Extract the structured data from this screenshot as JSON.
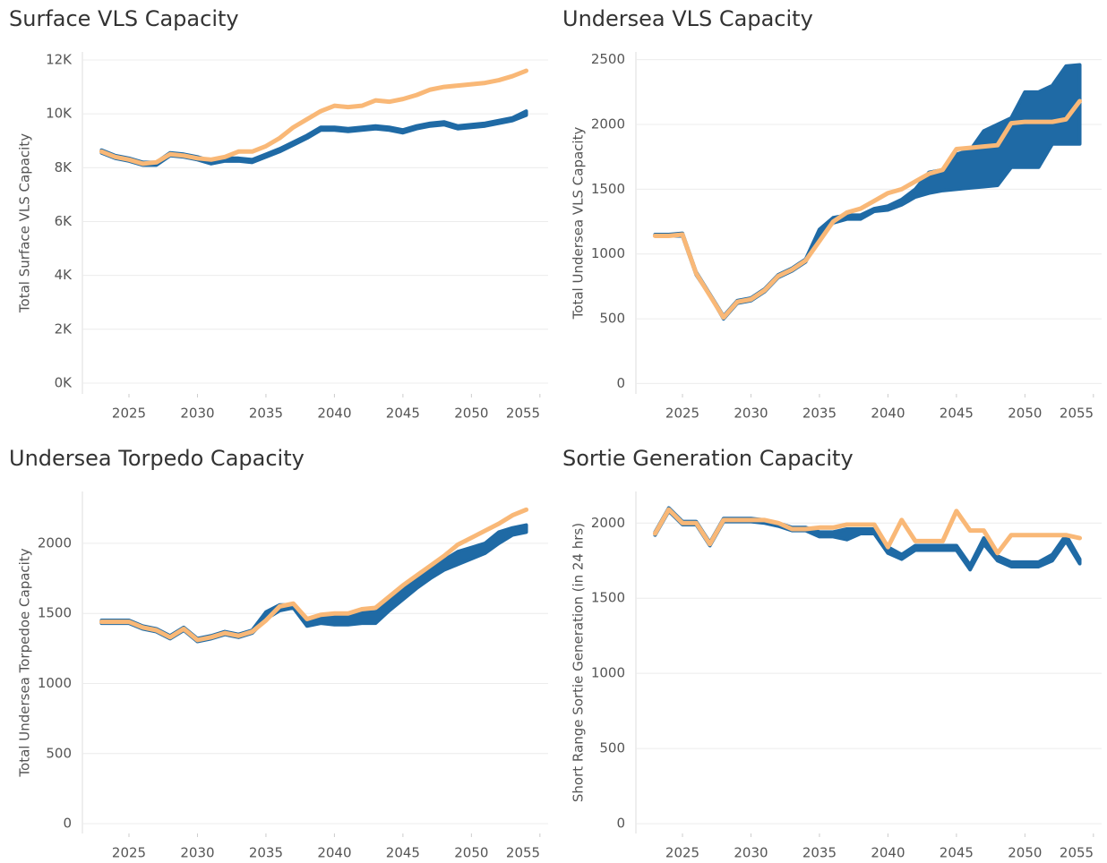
{
  "chart_data": [
    {
      "type": "line",
      "title": "Surface VLS Capacity",
      "y_label": "Total Surface VLS Capacity",
      "x": [
        2023,
        2024,
        2025,
        2026,
        2027,
        2028,
        2029,
        2030,
        2031,
        2032,
        2033,
        2034,
        2035,
        2036,
        2037,
        2038,
        2039,
        2040,
        2041,
        2042,
        2043,
        2044,
        2045,
        2046,
        2047,
        2048,
        2049,
        2050,
        2051,
        2052,
        2053,
        2054
      ],
      "xlim": [
        2021.6,
        2055.6
      ],
      "xticks": [
        2025,
        2030,
        2035,
        2040,
        2045,
        2050,
        2055
      ],
      "ylim": [
        -400,
        12300
      ],
      "yticks": [
        {
          "value": 0,
          "label": "0K"
        },
        {
          "value": 2000,
          "label": "2K"
        },
        {
          "value": 4000,
          "label": "4K"
        },
        {
          "value": 6000,
          "label": "6K"
        },
        {
          "value": 8000,
          "label": "8K"
        },
        {
          "value": 10000,
          "label": "10K"
        },
        {
          "value": 12000,
          "label": "12K"
        }
      ],
      "grid": true,
      "series": [
        {
          "color": "#1f6aa5",
          "low": [
            8550,
            8350,
            8250,
            8100,
            8100,
            8450,
            8400,
            8300,
            8150,
            8250,
            8250,
            8200,
            8400,
            8600,
            8850,
            9100,
            9400,
            9400,
            9350,
            9400,
            9450,
            9400,
            9300,
            9450,
            9550,
            9600,
            9450,
            9500,
            9550,
            9650,
            9750,
            9950
          ],
          "high": [
            8650,
            8450,
            8350,
            8200,
            8200,
            8550,
            8500,
            8400,
            8250,
            8350,
            8350,
            8300,
            8500,
            8700,
            8950,
            9200,
            9500,
            9500,
            9450,
            9500,
            9550,
            9500,
            9400,
            9550,
            9650,
            9700,
            9550,
            9600,
            9650,
            9750,
            9850,
            10100
          ]
        },
        {
          "color": "#f9b877",
          "values": [
            8600,
            8400,
            8300,
            8150,
            8200,
            8500,
            8450,
            8350,
            8300,
            8400,
            8600,
            8600,
            8800,
            9100,
            9500,
            9800,
            10100,
            10300,
            10250,
            10300,
            10500,
            10450,
            10550,
            10700,
            10900,
            11000,
            11050,
            11100,
            11150,
            11250,
            11400,
            11600
          ]
        }
      ]
    },
    {
      "type": "line",
      "title": "Undersea VLS Capacity",
      "y_label": "Total Undersea VLS Capacity",
      "x": [
        2023,
        2024,
        2025,
        2026,
        2027,
        2028,
        2029,
        2030,
        2031,
        2032,
        2033,
        2034,
        2035,
        2036,
        2037,
        2038,
        2039,
        2040,
        2041,
        2042,
        2043,
        2044,
        2045,
        2046,
        2047,
        2048,
        2049,
        2050,
        2051,
        2052,
        2053,
        2054
      ],
      "xlim": [
        2021.6,
        2055.6
      ],
      "xticks": [
        2025,
        2030,
        2035,
        2040,
        2045,
        2050,
        2055
      ],
      "ylim": [
        -80,
        2560
      ],
      "yticks": [
        0,
        500,
        1000,
        1500,
        2000,
        2500
      ],
      "grid": true,
      "series": [
        {
          "color": "#1f6aa5",
          "low": [
            1140,
            1140,
            1140,
            840,
            680,
            500,
            620,
            640,
            710,
            820,
            870,
            940,
            1150,
            1240,
            1270,
            1270,
            1330,
            1340,
            1380,
            1440,
            1470,
            1490,
            1500,
            1510,
            1520,
            1530,
            1670,
            1670,
            1670,
            1850,
            1850,
            1850
          ],
          "high": [
            1150,
            1150,
            1160,
            860,
            690,
            520,
            640,
            660,
            730,
            840,
            890,
            960,
            1190,
            1280,
            1300,
            1300,
            1350,
            1370,
            1420,
            1500,
            1630,
            1650,
            1770,
            1800,
            1950,
            2000,
            2050,
            2250,
            2250,
            2300,
            2450,
            2460
          ]
        },
        {
          "color": "#f9b877",
          "values": [
            1140,
            1140,
            1150,
            850,
            680,
            510,
            630,
            650,
            720,
            830,
            880,
            950,
            1100,
            1250,
            1320,
            1350,
            1410,
            1470,
            1500,
            1560,
            1620,
            1650,
            1810,
            1820,
            1830,
            1840,
            2010,
            2020,
            2020,
            2020,
            2040,
            2180
          ]
        }
      ]
    },
    {
      "type": "line",
      "title": "Undersea Torpedo Capacity",
      "y_label": "Total Undersea Torpedoe Capacity",
      "x": [
        2023,
        2024,
        2025,
        2026,
        2027,
        2028,
        2029,
        2030,
        2031,
        2032,
        2033,
        2034,
        2035,
        2036,
        2037,
        2038,
        2039,
        2040,
        2041,
        2042,
        2043,
        2044,
        2045,
        2046,
        2047,
        2048,
        2049,
        2050,
        2051,
        2052,
        2053,
        2054
      ],
      "xlim": [
        2021.6,
        2055.6
      ],
      "xticks": [
        2025,
        2030,
        2035,
        2040,
        2045,
        2050,
        2055
      ],
      "ylim": [
        -70,
        2370
      ],
      "yticks": [
        0,
        500,
        1000,
        1500,
        2000
      ],
      "grid": true,
      "series": [
        {
          "color": "#1f6aa5",
          "low": [
            1430,
            1430,
            1430,
            1390,
            1370,
            1320,
            1380,
            1300,
            1320,
            1350,
            1330,
            1360,
            1460,
            1520,
            1540,
            1410,
            1430,
            1420,
            1420,
            1430,
            1430,
            1520,
            1600,
            1680,
            1750,
            1810,
            1850,
            1890,
            1930,
            2000,
            2060,
            2080
          ],
          "high": [
            1450,
            1450,
            1450,
            1410,
            1390,
            1340,
            1400,
            1320,
            1340,
            1370,
            1350,
            1380,
            1510,
            1560,
            1560,
            1450,
            1480,
            1490,
            1490,
            1510,
            1510,
            1600,
            1680,
            1760,
            1830,
            1880,
            1940,
            1970,
            2000,
            2080,
            2110,
            2130
          ]
        },
        {
          "color": "#f9b877",
          "values": [
            1440,
            1440,
            1440,
            1400,
            1380,
            1330,
            1390,
            1310,
            1330,
            1360,
            1340,
            1370,
            1450,
            1550,
            1570,
            1460,
            1490,
            1500,
            1500,
            1530,
            1540,
            1620,
            1700,
            1770,
            1840,
            1910,
            1990,
            2040,
            2090,
            2140,
            2200,
            2240
          ]
        }
      ]
    },
    {
      "type": "line",
      "title": "Sortie Generation Capacity",
      "y_label": "Short Range Sortie Generation (in 24 hrs)",
      "x": [
        2023,
        2024,
        2025,
        2026,
        2027,
        2028,
        2029,
        2030,
        2031,
        2032,
        2033,
        2034,
        2035,
        2036,
        2037,
        2038,
        2039,
        2040,
        2041,
        2042,
        2043,
        2044,
        2045,
        2046,
        2047,
        2048,
        2049,
        2050,
        2051,
        2052,
        2053,
        2054
      ],
      "xlim": [
        2021.6,
        2055.6
      ],
      "xticks": [
        2025,
        2030,
        2035,
        2040,
        2045,
        2050,
        2055
      ],
      "ylim": [
        -65,
        2210
      ],
      "yticks": [
        0,
        500,
        1000,
        1500,
        2000
      ],
      "grid": true,
      "series": [
        {
          "color": "#1f6aa5",
          "low": [
            1920,
            2080,
            1990,
            1990,
            1850,
            2010,
            2010,
            2010,
            2000,
            1980,
            1950,
            1950,
            1910,
            1910,
            1890,
            1930,
            1930,
            1800,
            1760,
            1820,
            1820,
            1820,
            1820,
            1690,
            1860,
            1750,
            1710,
            1710,
            1710,
            1750,
            1880,
            1730
          ],
          "high": [
            1940,
            2100,
            2010,
            2010,
            1870,
            2030,
            2030,
            2030,
            2020,
            2000,
            1970,
            1970,
            1940,
            1940,
            1960,
            1960,
            1960,
            1840,
            1790,
            1850,
            1850,
            1850,
            1850,
            1720,
            1900,
            1780,
            1740,
            1740,
            1740,
            1790,
            1920,
            1760
          ]
        },
        {
          "color": "#f9b877",
          "values": [
            1930,
            2090,
            2000,
            2000,
            1860,
            2020,
            2020,
            2020,
            2020,
            2000,
            1960,
            1960,
            1970,
            1970,
            1990,
            1990,
            1990,
            1840,
            2020,
            1880,
            1880,
            1880,
            2080,
            1950,
            1950,
            1800,
            1920,
            1920,
            1920,
            1920,
            1920,
            1900
          ]
        }
      ]
    }
  ]
}
